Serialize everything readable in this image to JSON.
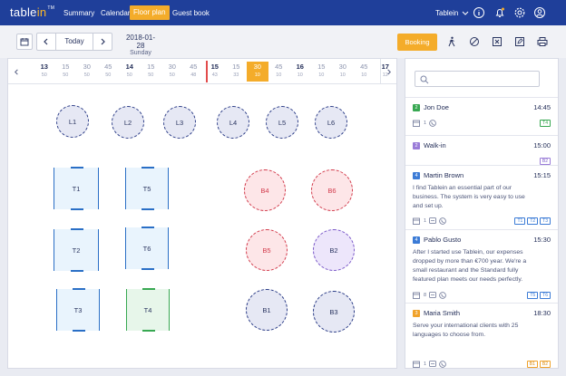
{
  "app": {
    "logo_main": "table",
    "logo_accent": "in",
    "logo_tm": "TM"
  },
  "nav": {
    "items": [
      "Summary",
      "Calendar",
      "Floor plan",
      "Guest book"
    ],
    "active": "Floor plan"
  },
  "account": {
    "name": "Tablein"
  },
  "toolbar": {
    "today_label": "Today",
    "date": "2018-01-28",
    "weekday": "Sunday",
    "booking_label": "Booking"
  },
  "timeline": {
    "slots": [
      {
        "time": "13",
        "count": "50",
        "hour": true
      },
      {
        "time": "15",
        "count": "50"
      },
      {
        "time": "30",
        "count": "50"
      },
      {
        "time": "45",
        "count": "50"
      },
      {
        "time": "14",
        "count": "50",
        "hour": true
      },
      {
        "time": "15",
        "count": "50"
      },
      {
        "time": "30",
        "count": "50"
      },
      {
        "time": "45",
        "count": "48"
      },
      {
        "time": "15",
        "count": "43",
        "hour": true
      },
      {
        "time": "15",
        "count": "33"
      },
      {
        "time": "30",
        "count": "10",
        "selected": true
      },
      {
        "time": "45",
        "count": "10"
      },
      {
        "time": "16",
        "count": "10",
        "hour": true
      },
      {
        "time": "15",
        "count": "10"
      },
      {
        "time": "30",
        "count": "10"
      },
      {
        "time": "45",
        "count": "10"
      },
      {
        "time": "17",
        "count": "12",
        "hour": true
      }
    ]
  },
  "floor": {
    "tables": [
      {
        "label": "L1",
        "shape": "round",
        "color": "grey"
      },
      {
        "label": "L2",
        "shape": "round",
        "color": "grey"
      },
      {
        "label": "L3",
        "shape": "round",
        "color": "grey"
      },
      {
        "label": "L4",
        "shape": "round",
        "color": "grey"
      },
      {
        "label": "L5",
        "shape": "round",
        "color": "grey"
      },
      {
        "label": "L6",
        "shape": "round",
        "color": "grey"
      },
      {
        "label": "T1",
        "shape": "square",
        "color": "blue"
      },
      {
        "label": "T5",
        "shape": "square",
        "color": "blue"
      },
      {
        "label": "T2",
        "shape": "square",
        "color": "blue"
      },
      {
        "label": "T6",
        "shape": "square",
        "color": "blue"
      },
      {
        "label": "T3",
        "shape": "square",
        "color": "blue"
      },
      {
        "label": "T4",
        "shape": "square",
        "color": "green"
      },
      {
        "label": "B4",
        "shape": "round",
        "color": "pink"
      },
      {
        "label": "B6",
        "shape": "round",
        "color": "pink"
      },
      {
        "label": "B5",
        "shape": "round",
        "color": "pink"
      },
      {
        "label": "B2",
        "shape": "round",
        "color": "purple"
      },
      {
        "label": "B1",
        "shape": "round",
        "color": "grey"
      },
      {
        "label": "B3",
        "shape": "round",
        "color": "grey"
      }
    ]
  },
  "reservations": [
    {
      "guests": "2",
      "name": "Jon Doe",
      "time": "14:45",
      "badge_color": "#38a852",
      "note": "",
      "icon_count": "1",
      "tags": [
        "T4"
      ],
      "tag_color": "green"
    },
    {
      "guests": "2",
      "name": "Walk-in",
      "time": "15:00",
      "badge_color": "#9a7cd8",
      "note": "",
      "icon_count": "",
      "tags": [
        "B2"
      ],
      "tag_color": "purple"
    },
    {
      "guests": "4",
      "name": "Martin Brown",
      "time": "15:15",
      "badge_color": "#3b7bd6",
      "note": "I find Tablein an essential part of our business. The system is very easy to use and set up.",
      "icon_count": "1",
      "tags": [
        "T1",
        "T2",
        "T3"
      ],
      "tag_color": "blue"
    },
    {
      "guests": "4",
      "name": "Pablo Gusto",
      "time": "15:30",
      "badge_color": "#3b7bd6",
      "note": "After I started use Tablein, our expenses dropped by more than €700 year. We're a small restaurant and the Standard fully featured plan meets our needs perfectly.",
      "icon_count": "8",
      "tags": [
        "T5",
        "T6"
      ],
      "tag_color": "blue"
    },
    {
      "guests": "3",
      "name": "Maria Smith",
      "time": "18:30",
      "badge_color": "#f0a22a",
      "note": "Serve your international clients with 25 languages to choose from.",
      "icon_count": "1",
      "tags": [
        "B1",
        "B2"
      ],
      "tag_color": "orange"
    }
  ]
}
